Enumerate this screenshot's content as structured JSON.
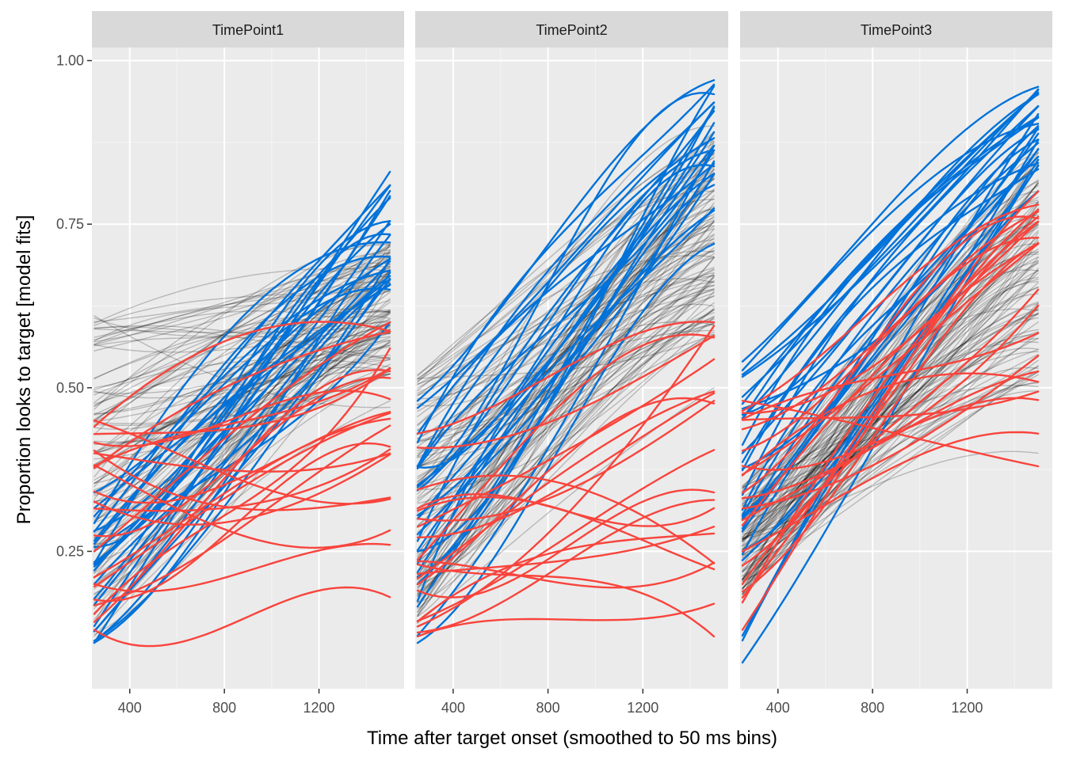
{
  "chart_data": {
    "type": "line",
    "facet_by": "time_point",
    "panels": [
      "TimePoint1",
      "TimePoint2",
      "TimePoint3"
    ],
    "xlabel": "Time after target onset (smoothed to 50 ms bins)",
    "ylabel": "Proportion looks to target [model fits]",
    "x_ticks": [
      400,
      800,
      1200
    ],
    "y_ticks": [
      "0.25",
      "0.50",
      "0.75",
      "1.00"
    ],
    "xlim": [
      240,
      1560
    ],
    "ylim": [
      0.04,
      1.02
    ],
    "x_range": [
      250,
      1500
    ],
    "grid": true,
    "legend": "none",
    "colors": {
      "panel_bg": "#EBEBEB",
      "strip_bg": "#D9D9D9",
      "grid_major": "#FFFFFF",
      "other": "#000000",
      "high": "#0072D9",
      "low": "#F8443C"
    },
    "series_groups": [
      {
        "panel": "TimePoint1",
        "groups": [
          {
            "color": "other",
            "count": 110,
            "lines": [
              {
                "y0": 0.2,
                "y1": 0.55
              },
              {
                "y0": 0.3,
                "y1": 0.6
              },
              {
                "y0": 0.12,
                "y1": 0.48
              },
              {
                "y0": 0.61,
                "y1": 0.47
              },
              {
                "y0": 0.4,
                "y1": 0.72
              }
            ]
          },
          {
            "color": "high",
            "count": 25,
            "lines": [
              {
                "y0": 0.11,
                "y1": 0.83
              },
              {
                "y0": 0.23,
                "y1": 0.79
              },
              {
                "y0": 0.34,
                "y1": 0.65
              },
              {
                "y0": 0.28,
                "y1": 0.7
              },
              {
                "y0": 0.25,
                "y1": 0.6
              }
            ]
          },
          {
            "color": "low",
            "count": 22,
            "lines": [
              {
                "y0": 0.45,
                "y1": 0.33
              },
              {
                "y0": 0.38,
                "y1": 0.53
              },
              {
                "y0": 0.25,
                "y1": 0.6
              },
              {
                "y0": 0.13,
                "y1": 0.18
              },
              {
                "y0": 0.2,
                "y1": 0.26
              }
            ]
          }
        ]
      },
      {
        "panel": "TimePoint2",
        "groups": [
          {
            "color": "other",
            "count": 110,
            "lines": [
              {
                "y0": 0.29,
                "y1": 0.68
              },
              {
                "y0": 0.52,
                "y1": 0.8
              },
              {
                "y0": 0.14,
                "y1": 0.5
              },
              {
                "y0": 0.35,
                "y1": 0.9
              },
              {
                "y0": 0.22,
                "y1": 0.62
              }
            ]
          },
          {
            "color": "high",
            "count": 25,
            "lines": [
              {
                "y0": 0.48,
                "y1": 0.97
              },
              {
                "y0": 0.11,
                "y1": 0.72
              },
              {
                "y0": 0.3,
                "y1": 0.93
              },
              {
                "y0": 0.25,
                "y1": 0.81
              },
              {
                "y0": 0.2,
                "y1": 0.87
              }
            ]
          },
          {
            "color": "low",
            "count": 20,
            "lines": [
              {
                "y0": 0.43,
                "y1": 0.6
              },
              {
                "y0": 0.12,
                "y1": 0.17
              },
              {
                "y0": 0.23,
                "y1": 0.12
              },
              {
                "y0": 0.19,
                "y1": 0.34
              },
              {
                "y0": 0.3,
                "y1": 0.48
              }
            ]
          }
        ]
      },
      {
        "panel": "TimePoint3",
        "groups": [
          {
            "color": "other",
            "count": 110,
            "lines": [
              {
                "y0": 0.18,
                "y1": 0.8
              },
              {
                "y0": 0.27,
                "y1": 0.4
              },
              {
                "y0": 0.3,
                "y1": 0.7
              },
              {
                "y0": 0.22,
                "y1": 0.52
              },
              {
                "y0": 0.35,
                "y1": 0.86
              }
            ]
          },
          {
            "color": "high",
            "count": 28,
            "lines": [
              {
                "y0": 0.54,
                "y1": 0.96
              },
              {
                "y0": 0.08,
                "y1": 0.84
              },
              {
                "y0": 0.3,
                "y1": 0.9
              },
              {
                "y0": 0.25,
                "y1": 0.8
              },
              {
                "y0": 0.4,
                "y1": 0.93
              }
            ]
          },
          {
            "color": "low",
            "count": 22,
            "lines": [
              {
                "y0": 0.48,
                "y1": 0.38
              },
              {
                "y0": 0.13,
                "y1": 0.8
              },
              {
                "y0": 0.25,
                "y1": 0.43
              },
              {
                "y0": 0.29,
                "y1": 0.72
              },
              {
                "y0": 0.2,
                "y1": 0.65
              }
            ]
          }
        ]
      }
    ]
  }
}
